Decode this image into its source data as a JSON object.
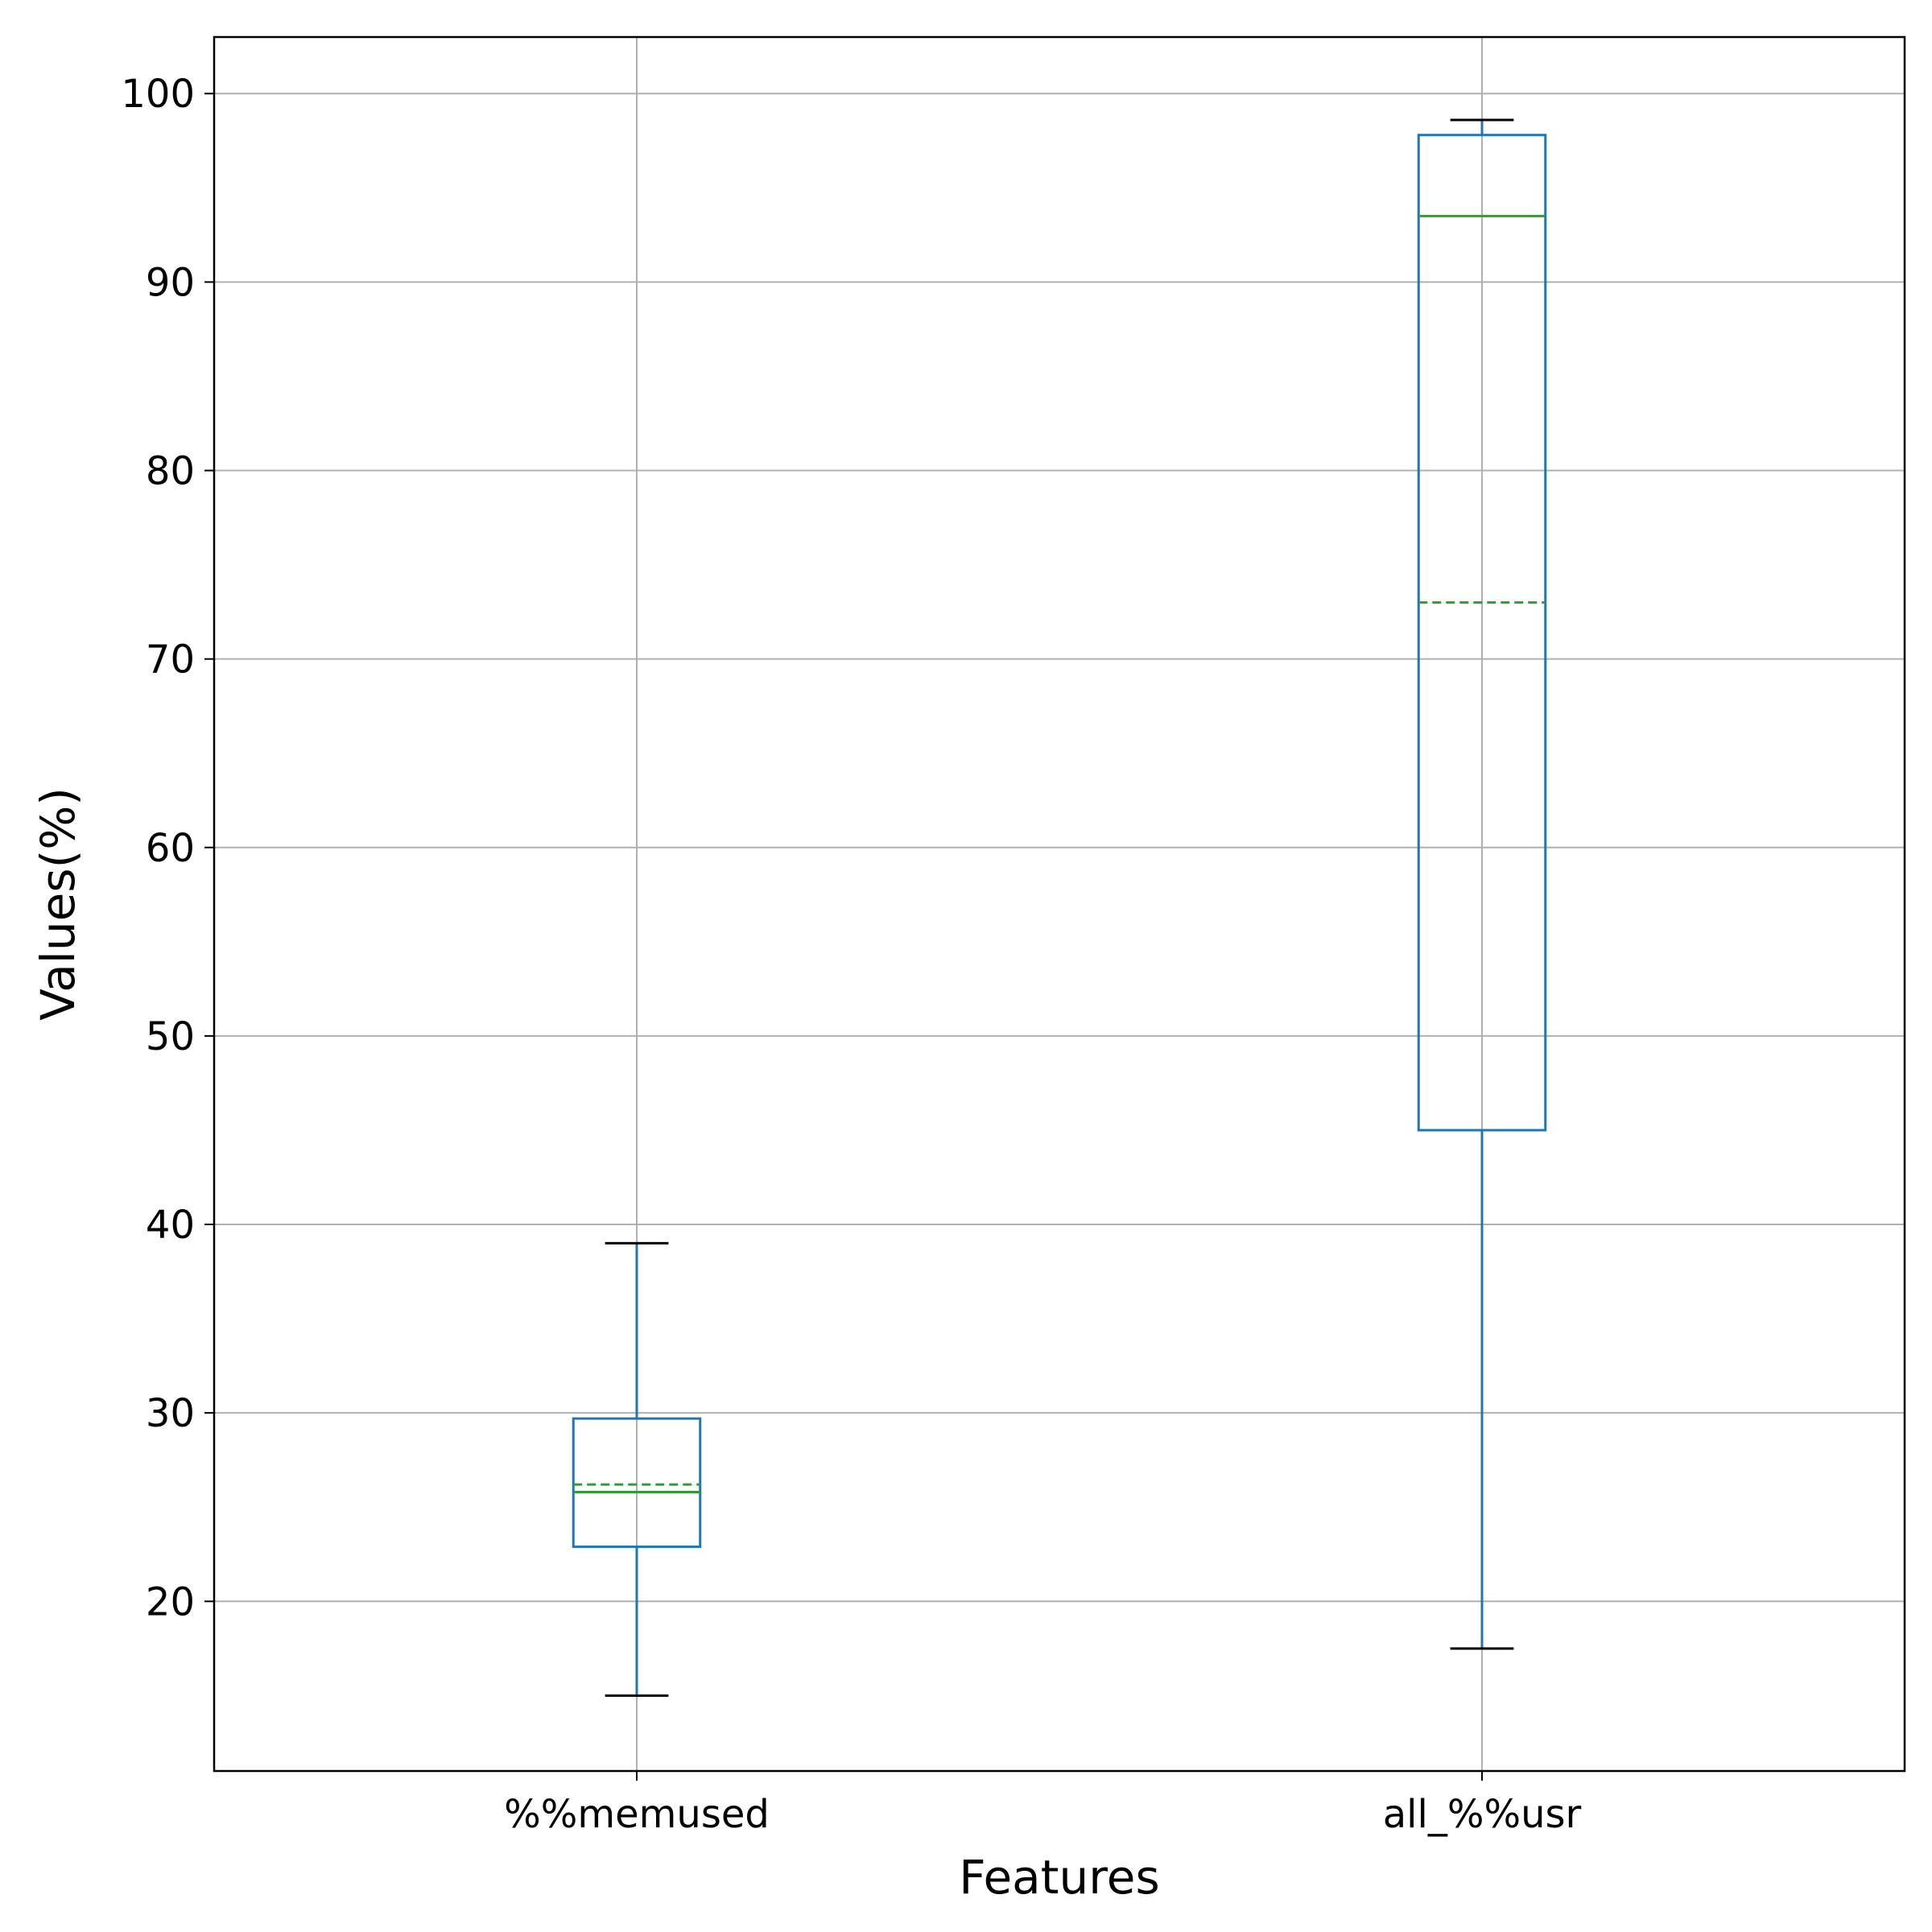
{
  "chart_data": {
    "type": "box",
    "xlabel": "Features",
    "ylabel": "Values(%)",
    "ylim": [
      11,
      103
    ],
    "yticks": [
      20,
      30,
      40,
      50,
      60,
      70,
      80,
      90,
      100
    ],
    "grid": true,
    "categories": [
      "%%memused",
      "all_%%usr"
    ],
    "boxes": [
      {
        "label": "%%memused",
        "whisker_low": 15.0,
        "q1": 22.9,
        "median": 25.8,
        "mean": 26.2,
        "q3": 29.7,
        "whisker_high": 39.0
      },
      {
        "label": "all_%%usr",
        "whisker_low": 17.5,
        "q1": 45.0,
        "median": 93.5,
        "mean": 73.0,
        "q3": 97.8,
        "whisker_high": 98.6
      }
    ],
    "colors": {
      "box": "#1f77b4",
      "median": "#2ca02c",
      "mean": "#2ca02c",
      "whisker_cap": "#000000",
      "grid": "#b0b0b0"
    }
  }
}
